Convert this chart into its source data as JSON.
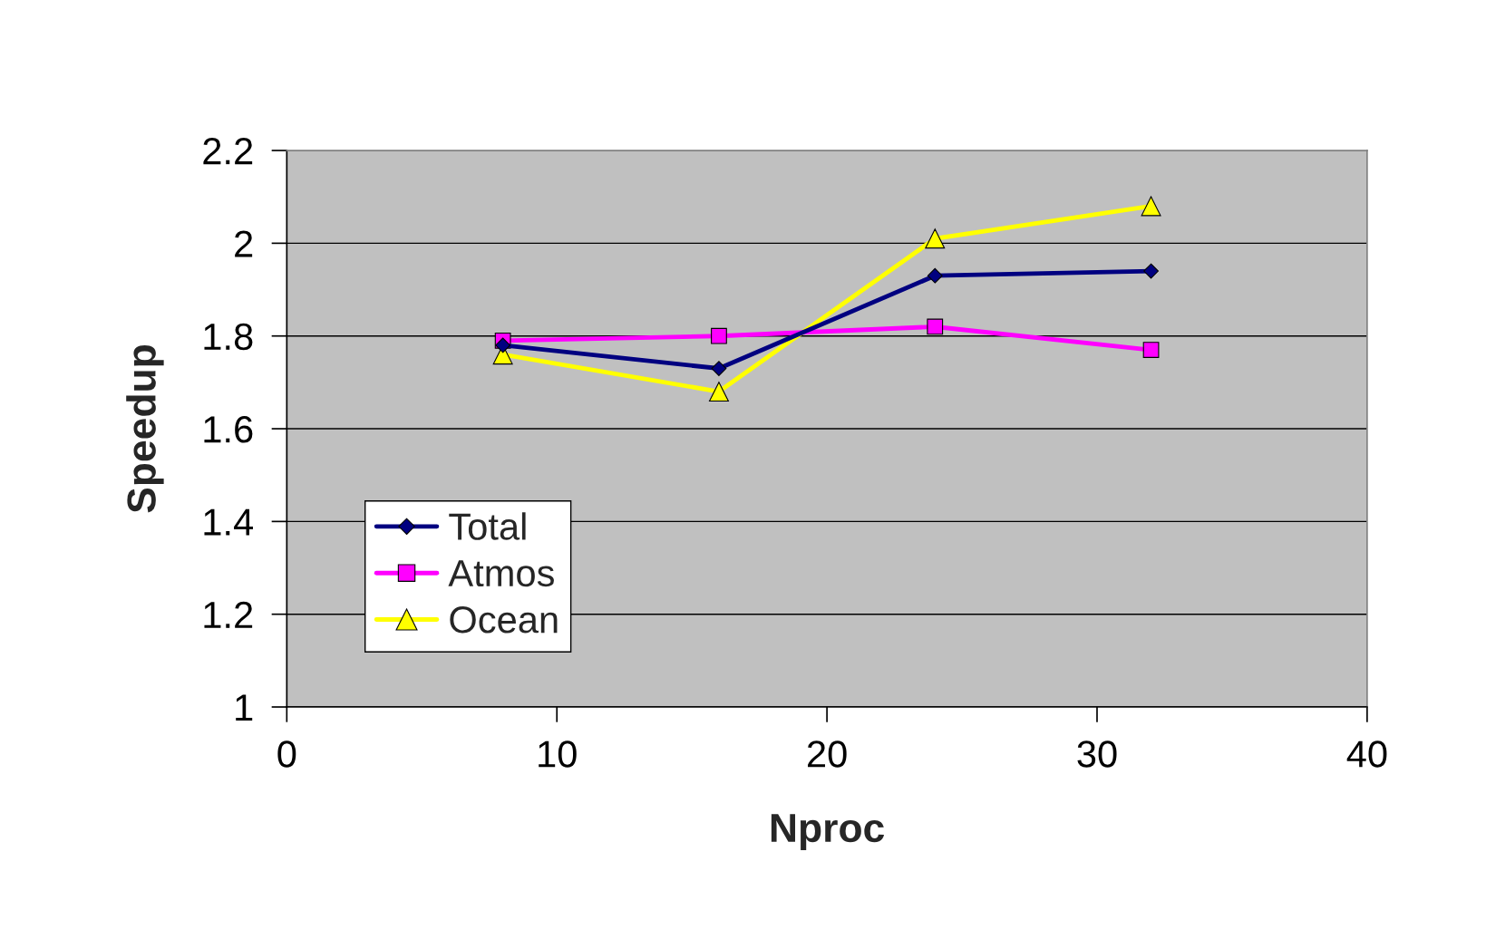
{
  "chart_data": {
    "type": "line",
    "xlabel": "Nproc",
    "ylabel": "Speedup",
    "x": [
      8,
      16,
      24,
      32
    ],
    "series": [
      {
        "name": "Total",
        "color": "#000080",
        "marker": "diamond",
        "values": [
          1.78,
          1.73,
          1.93,
          1.94
        ]
      },
      {
        "name": "Atmos",
        "color": "#ff00ff",
        "marker": "square",
        "values": [
          1.79,
          1.8,
          1.82,
          1.77
        ]
      },
      {
        "name": "Ocean",
        "color": "#ffff00",
        "marker": "triangle",
        "values": [
          1.76,
          1.68,
          2.01,
          2.08
        ]
      }
    ],
    "xlim": [
      0,
      40
    ],
    "xticks": [
      0,
      10,
      20,
      30,
      40
    ],
    "ylim": [
      1,
      2.2
    ],
    "yticks": [
      1,
      1.2,
      1.4,
      1.6,
      1.8,
      2,
      2.2
    ],
    "grid": "y",
    "legend": "bottom left"
  }
}
